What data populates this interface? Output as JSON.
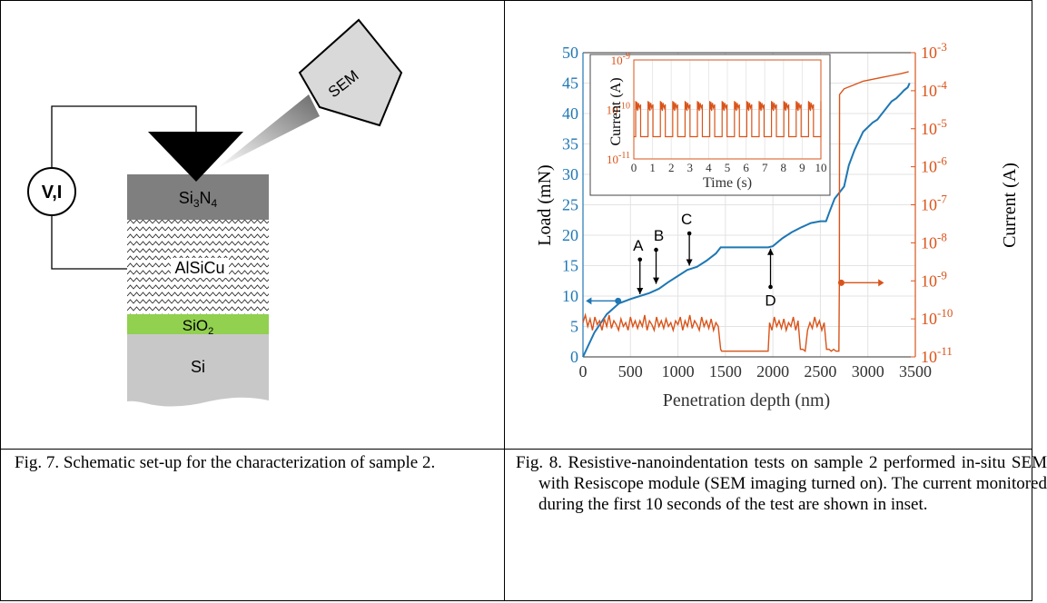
{
  "fig7": {
    "caption": "Fig. 7. Schematic set-up for the characterization of sample 2.",
    "labels": {
      "sem": "SEM",
      "meter": "V,I",
      "si3n4": "Si3N4",
      "alsicu": "AlSiCu",
      "sio2": "SiO2",
      "si": "Si"
    },
    "colors": {
      "si3n4": "#7f7f7f",
      "alsicu_bg": "#ffffff",
      "sio2": "#92d050",
      "si": "#c8c8c8",
      "tip": "#000000"
    }
  },
  "fig8": {
    "caption": "Fig. 8. Resistive-nanoindentation tests on sample 2 performed in-situ SEM with Resiscope module (SEM imaging turned on). The current monitored during the first 10 seconds of the test are shown in inset.",
    "annotations": [
      "A",
      "B",
      "C",
      "D"
    ],
    "colors": {
      "load": "#1f77b4",
      "current": "#d95319"
    }
  },
  "chart_data": [
    {
      "type": "line",
      "xlabel": "Penetration depth (nm)",
      "ylabel": "Load (mN)",
      "y2label": "Current (A)",
      "xlim": [
        0,
        3500
      ],
      "ylim": [
        0,
        50
      ],
      "y2lim_exp": [
        -11,
        -3
      ],
      "y2scale": "log",
      "xticks": [
        "0",
        "500",
        "1000",
        "1500",
        "2000",
        "2500",
        "3000",
        "3500"
      ],
      "yticks": [
        "0",
        "5",
        "10",
        "15",
        "20",
        "25",
        "30",
        "35",
        "40",
        "45",
        "50"
      ],
      "y2ticks": [
        "-11",
        "-10",
        "-9",
        "-8",
        "-7",
        "-6",
        "-5",
        "-4",
        "-3"
      ],
      "grid": true,
      "series": [
        {
          "axis": "left",
          "x": [
            0,
            120,
            250,
            380,
            500,
            600,
            700,
            800,
            900,
            1000,
            1100,
            1200,
            1300,
            1400,
            1450,
            1600,
            1700,
            1800,
            1950,
            2000,
            2100,
            2200,
            2300,
            2400,
            2500,
            2560,
            2600,
            2650,
            2700,
            2750,
            2800,
            2860,
            2950,
            3050,
            3100,
            3150,
            3250,
            3300,
            3350,
            3380,
            3420,
            3440
          ],
          "y": [
            0,
            4,
            7,
            8.8,
            9.5,
            10,
            10.5,
            11.2,
            12.3,
            13.3,
            14.3,
            14.8,
            15.8,
            17,
            18,
            18,
            18,
            18,
            18,
            18.2,
            19.5,
            20.5,
            21.3,
            22,
            22.3,
            22.3,
            24,
            26,
            27,
            28,
            31.5,
            34,
            37,
            38.5,
            39,
            40,
            42,
            42.5,
            43.3,
            43.8,
            44.3,
            45
          ]
        },
        {
          "axis": "right",
          "x": [
            0,
            25,
            50,
            75,
            100,
            125,
            150,
            175,
            200,
            225,
            250,
            275,
            300,
            325,
            350,
            375,
            400,
            425,
            450,
            475,
            500,
            525,
            550,
            575,
            600,
            625,
            650,
            675,
            700,
            725,
            750,
            775,
            800,
            825,
            850,
            875,
            900,
            925,
            950,
            975,
            1000,
            1025,
            1050,
            1075,
            1100,
            1125,
            1150,
            1175,
            1200,
            1225,
            1250,
            1275,
            1300,
            1325,
            1350,
            1375,
            1400,
            1425,
            1450,
            1460,
            1600,
            1800,
            1950,
            1965,
            1990,
            2015,
            2040,
            2065,
            2090,
            2115,
            2140,
            2165,
            2190,
            2215,
            2240,
            2265,
            2290,
            2315,
            2340,
            2365,
            2390,
            2415,
            2440,
            2465,
            2490,
            2515,
            2540,
            2565,
            2590,
            2615,
            2640,
            2665,
            2695,
            2700,
            2702,
            2750,
            2850,
            2950,
            3050,
            3150,
            3250,
            3350,
            3430
          ],
          "y_exp": [
            -10.1,
            -9.9,
            -10.2,
            -10.0,
            -10.3,
            -9.95,
            -10.15,
            -10.05,
            -10.3,
            -10.0,
            -10.2,
            -9.9,
            -10.25,
            -10.05,
            -10.15,
            -10.3,
            -10.0,
            -10.2,
            -10.1,
            -10.3,
            -9.95,
            -10.2,
            -10.05,
            -10.25,
            -10.05,
            -10.2,
            -9.9,
            -10.3,
            -10.05,
            -10.15,
            -10.3,
            -9.95,
            -10.2,
            -10.05,
            -10.25,
            -10.0,
            -10.2,
            -10.1,
            -10.3,
            -10.05,
            -10.15,
            -9.95,
            -10.3,
            -10.05,
            -10.2,
            -9.9,
            -10.25,
            -10.05,
            -10.15,
            -10.3,
            -9.95,
            -10.2,
            -10.05,
            -10.25,
            -10.0,
            -10.3,
            -10.1,
            -10.2,
            -10.8,
            -10.85,
            -10.85,
            -10.85,
            -10.85,
            -10.1,
            -10.3,
            -9.95,
            -10.2,
            -10.05,
            -10.25,
            -10.0,
            -10.3,
            -10.1,
            -10.2,
            -9.95,
            -10.3,
            -10.05,
            -10.8,
            -10.8,
            -10.85,
            -10.3,
            -10.1,
            -10.25,
            -9.95,
            -10.2,
            -10.05,
            -10.3,
            -10.1,
            -10.8,
            -10.8,
            -10.85,
            -10.8,
            -10.85,
            -10.85,
            -9.0,
            -4.1,
            -3.95,
            -3.85,
            -3.75,
            -3.7,
            -3.65,
            -3.6,
            -3.55,
            -3.5
          ]
        }
      ]
    },
    {
      "type": "line",
      "inset": true,
      "xlabel": "Time (s)",
      "ylabel": "Current (A)",
      "xlim": [
        0,
        10
      ],
      "ylim_exp": [
        -11,
        -9
      ],
      "yscale": "log",
      "xticks": [
        "0",
        "1",
        "2",
        "3",
        "4",
        "5",
        "6",
        "7",
        "8",
        "9",
        "10"
      ],
      "yticks": [
        "-11",
        "-10",
        "-9"
      ],
      "period_s": 0.66,
      "high_exp": -9.95,
      "low_exp": -10.55,
      "grid": true
    }
  ]
}
